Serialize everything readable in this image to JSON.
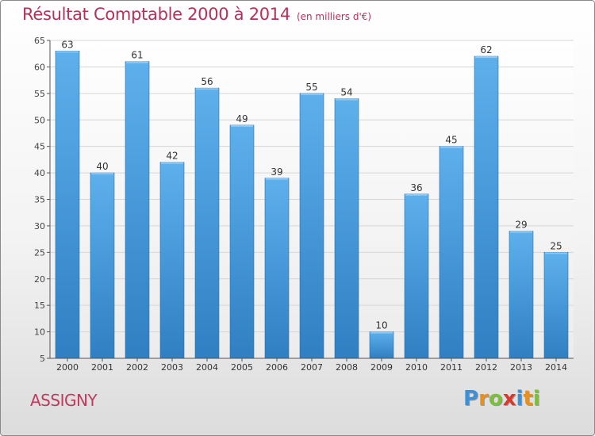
{
  "header": {
    "title": "Résultat Comptable 2000 à 2014",
    "subtitle": "(en milliers d'€)"
  },
  "footer": {
    "commune": "ASSIGNY",
    "logo_text": "Proxiti"
  },
  "colors": {
    "title": "#b5315a",
    "bar_top": "#5eb0ec",
    "bar_bottom": "#2f7fc2",
    "axis": "#555555"
  },
  "chart_data": {
    "type": "bar",
    "title": "Résultat Comptable 2000 à 2014",
    "subtitle": "(en milliers d'€)",
    "xlabel": "",
    "ylabel": "",
    "categories": [
      "2000",
      "2001",
      "2002",
      "2003",
      "2004",
      "2005",
      "2006",
      "2007",
      "2008",
      "2009",
      "2010",
      "2011",
      "2012",
      "2013",
      "2014"
    ],
    "values": [
      63,
      40,
      61,
      42,
      56,
      49,
      39,
      55,
      54,
      10,
      36,
      45,
      62,
      29,
      25
    ],
    "ylim": [
      5,
      65
    ],
    "yticks": [
      5,
      10,
      15,
      20,
      25,
      30,
      35,
      40,
      45,
      50,
      55,
      60,
      65
    ],
    "grid": true,
    "legend": "none"
  }
}
